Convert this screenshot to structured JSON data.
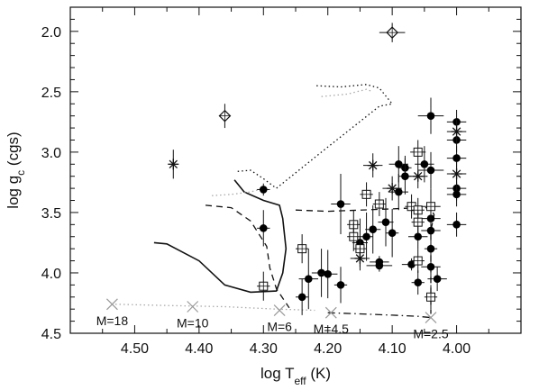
{
  "chart_data": {
    "type": "scatter",
    "title": "",
    "xlabel": "log T",
    "xlabel_sub": "eff",
    "xlabel_unit": " (K)",
    "ylabel": "log g",
    "ylabel_sub": "c",
    "ylabel_unit": " (cgs)",
    "xlim": [
      4.6,
      3.9
    ],
    "ylim": [
      4.5,
      1.8
    ],
    "x_reversed": true,
    "y_reversed": true,
    "xticks": [
      {
        "v": 4.5,
        "label": "4.50"
      },
      {
        "v": 4.4,
        "label": "4.40"
      },
      {
        "v": 4.3,
        "label": "4.30"
      },
      {
        "v": 4.2,
        "label": "4.20"
      },
      {
        "v": 4.1,
        "label": "4.10"
      },
      {
        "v": 4.0,
        "label": "4.00"
      }
    ],
    "yticks": [
      {
        "v": 2.0,
        "label": "2.0"
      },
      {
        "v": 2.5,
        "label": "2.5"
      },
      {
        "v": 3.0,
        "label": "3.0"
      },
      {
        "v": 3.5,
        "label": "3.5"
      },
      {
        "v": 4.0,
        "label": "4.0"
      },
      {
        "v": 4.5,
        "label": "4.5"
      }
    ],
    "grid": false,
    "filled_circles": [
      {
        "x": 4.3,
        "y": 3.31,
        "ex": 0.01,
        "ey": 0.05
      },
      {
        "x": 4.3,
        "y": 3.63,
        "ex": 0.01,
        "ey": 0.15
      },
      {
        "x": 4.24,
        "y": 4.2,
        "ex": 0.01,
        "ey": 0.15
      },
      {
        "x": 4.23,
        "y": 4.05,
        "ex": 0.015,
        "ey": 0.25
      },
      {
        "x": 4.21,
        "y": 4.0,
        "ex": 0.015,
        "ey": 0.2
      },
      {
        "x": 4.2,
        "y": 4.01,
        "ex": 0.015,
        "ey": 0.2
      },
      {
        "x": 4.18,
        "y": 4.1,
        "ex": 0.01,
        "ey": 0.15
      },
      {
        "x": 4.18,
        "y": 3.43,
        "ex": 0.015,
        "ey": 0.25
      },
      {
        "x": 4.15,
        "y": 3.75,
        "ex": 0.012,
        "ey": 0.2
      },
      {
        "x": 4.14,
        "y": 3.7,
        "ex": 0.01,
        "ey": 0.2
      },
      {
        "x": 4.13,
        "y": 3.64,
        "ex": 0.012,
        "ey": 0.2
      },
      {
        "x": 4.12,
        "y": 3.94,
        "ex": 0.02,
        "ey": 0.05
      },
      {
        "x": 4.12,
        "y": 3.91,
        "ex": 0.015,
        "ey": 0.05
      },
      {
        "x": 4.11,
        "y": 3.58,
        "ex": 0.012,
        "ey": 0.2
      },
      {
        "x": 4.1,
        "y": 3.67,
        "ex": 0.01,
        "ey": 0.2
      },
      {
        "x": 4.09,
        "y": 3.1,
        "ex": 0.015,
        "ey": 0.15
      },
      {
        "x": 4.09,
        "y": 3.33,
        "ex": 0.015,
        "ey": 0.15
      },
      {
        "x": 4.08,
        "y": 3.13,
        "ex": 0.01,
        "ey": 0.1
      },
      {
        "x": 4.08,
        "y": 3.2,
        "ex": 0.01,
        "ey": 0.15
      },
      {
        "x": 4.07,
        "y": 3.93,
        "ex": 0.015,
        "ey": 0.05
      },
      {
        "x": 4.06,
        "y": 3.7,
        "ex": 0.015,
        "ey": 0.1
      },
      {
        "x": 4.06,
        "y": 4.08,
        "ex": 0.01,
        "ey": 0.1
      },
      {
        "x": 4.05,
        "y": 3.1,
        "ex": 0.015,
        "ey": 0.15
      },
      {
        "x": 4.04,
        "y": 2.7,
        "ex": 0.02,
        "ey": 0.15
      },
      {
        "x": 4.04,
        "y": 3.15,
        "ex": 0.02,
        "ey": 0.15
      },
      {
        "x": 4.04,
        "y": 3.55,
        "ex": 0.015,
        "ey": 0.15
      },
      {
        "x": 4.04,
        "y": 3.65,
        "ex": 0.015,
        "ey": 0.15
      },
      {
        "x": 4.04,
        "y": 3.8,
        "ex": 0.01,
        "ey": 0.1
      },
      {
        "x": 4.04,
        "y": 3.95,
        "ex": 0.015,
        "ey": 0.1
      },
      {
        "x": 4.03,
        "y": 4.05,
        "ex": 0.015,
        "ey": 0.1
      },
      {
        "x": 4.0,
        "y": 2.75,
        "ex": 0.015,
        "ey": 0.1
      },
      {
        "x": 4.0,
        "y": 2.9,
        "ex": 0.015,
        "ey": 0.1
      },
      {
        "x": 4.0,
        "y": 3.05,
        "ex": 0.015,
        "ey": 0.1
      },
      {
        "x": 4.0,
        "y": 3.3,
        "ex": 0.015,
        "ey": 0.1
      },
      {
        "x": 4.0,
        "y": 3.35,
        "ex": 0.015,
        "ey": 0.1
      },
      {
        "x": 4.0,
        "y": 3.6,
        "ex": 0.015,
        "ey": 0.1
      }
    ],
    "open_squares": [
      {
        "x": 4.3,
        "y": 4.11,
        "ex": 0.01,
        "ey": 0.12
      },
      {
        "x": 4.24,
        "y": 3.8,
        "ex": 0.01,
        "ey": 0.12
      },
      {
        "x": 4.16,
        "y": 3.6,
        "ex": 0.01,
        "ey": 0.12
      },
      {
        "x": 4.16,
        "y": 3.7,
        "ex": 0.01,
        "ey": 0.12
      },
      {
        "x": 4.15,
        "y": 3.8,
        "ex": 0.01,
        "ey": 0.1
      },
      {
        "x": 4.14,
        "y": 3.35,
        "ex": 0.01,
        "ey": 0.1
      },
      {
        "x": 4.12,
        "y": 3.43,
        "ex": 0.01,
        "ey": 0.1
      },
      {
        "x": 4.07,
        "y": 3.45,
        "ex": 0.01,
        "ey": 0.1
      },
      {
        "x": 4.06,
        "y": 3.0,
        "ex": 0.012,
        "ey": 0.1
      },
      {
        "x": 4.06,
        "y": 3.48,
        "ex": 0.01,
        "ey": 0.1
      },
      {
        "x": 4.06,
        "y": 3.58,
        "ex": 0.01,
        "ey": 0.1
      },
      {
        "x": 4.06,
        "y": 3.9,
        "ex": 0.01,
        "ey": 0.1
      },
      {
        "x": 4.04,
        "y": 3.45,
        "ex": 0.015,
        "ey": 0.15
      },
      {
        "x": 4.04,
        "y": 4.2,
        "ex": 0.01,
        "ey": 0.1
      }
    ],
    "stars": [
      {
        "x": 4.44,
        "y": 3.1,
        "ex": 0.0,
        "ey": 0.12
      },
      {
        "x": 4.13,
        "y": 3.11,
        "ex": 0.015,
        "ey": 0.1
      },
      {
        "x": 4.15,
        "y": 3.88,
        "ex": 0.015,
        "ey": 0.1
      },
      {
        "x": 4.1,
        "y": 3.3,
        "ex": 0.015,
        "ey": 0.1
      },
      {
        "x": 4.06,
        "y": 3.2,
        "ex": 0.015,
        "ey": 0.1
      },
      {
        "x": 4.0,
        "y": 2.83,
        "ex": 0.015,
        "ey": 0.1
      },
      {
        "x": 4.0,
        "y": 3.18,
        "ex": 0.015,
        "ey": 0.1
      }
    ],
    "diamonds": [
      {
        "x": 4.1,
        "y": 2.01,
        "ex": 0.02,
        "ey": 0.08
      },
      {
        "x": 4.36,
        "y": 2.7,
        "ex": 0.0,
        "ey": 0.1
      }
    ],
    "zams": {
      "points": [
        [
          4.53,
          4.26
        ],
        [
          4.41,
          4.28
        ],
        [
          4.28,
          4.31
        ],
        [
          4.2,
          4.33
        ],
        [
          4.04,
          4.37
        ]
      ],
      "marks": [
        {
          "x": 4.535,
          "y": 4.26,
          "label": "M=18"
        },
        {
          "x": 4.41,
          "y": 4.28,
          "label": "M=10"
        },
        {
          "x": 4.275,
          "y": 4.31,
          "label": "M=6"
        },
        {
          "x": 4.195,
          "y": 4.33,
          "label": "M=4.5"
        },
        {
          "x": 4.04,
          "y": 4.37,
          "label": "M=2.5"
        }
      ]
    },
    "tracks": [
      {
        "style": "solid",
        "points": [
          [
            4.47,
            3.75
          ],
          [
            4.45,
            3.76
          ],
          [
            4.4,
            3.9
          ],
          [
            4.36,
            4.1
          ],
          [
            4.32,
            4.16
          ],
          [
            4.28,
            4.15
          ],
          [
            4.27,
            4.0
          ],
          [
            4.265,
            3.8
          ],
          [
            4.27,
            3.55
          ],
          [
            4.275,
            3.44
          ],
          [
            4.3,
            3.4
          ],
          [
            4.33,
            3.33
          ],
          [
            4.345,
            3.23
          ]
        ]
      },
      {
        "style": "dashed",
        "points": [
          [
            4.39,
            3.44
          ],
          [
            4.35,
            3.46
          ],
          [
            4.32,
            3.57
          ],
          [
            4.295,
            3.78
          ],
          [
            4.29,
            3.96
          ],
          [
            4.28,
            4.13
          ],
          [
            4.26,
            4.29
          ]
        ]
      },
      {
        "style": "dashed",
        "points": [
          [
            4.25,
            3.48
          ],
          [
            4.2,
            3.49
          ],
          [
            4.1,
            3.47
          ],
          [
            4.06,
            3.46
          ],
          [
            4.04,
            3.46
          ],
          [
            4.035,
            3.52
          ],
          [
            4.04,
            3.65
          ],
          [
            4.04,
            3.9
          ],
          [
            4.04,
            4.2
          ],
          [
            4.04,
            4.34
          ]
        ]
      },
      {
        "style": "dotted",
        "points": [
          [
            4.34,
            3.16
          ],
          [
            4.32,
            3.15
          ],
          [
            4.3,
            3.22
          ],
          [
            4.28,
            3.3
          ],
          [
            4.21,
            3.0
          ],
          [
            4.12,
            2.62
          ],
          [
            4.1,
            2.6
          ],
          [
            4.12,
            2.47
          ],
          [
            4.14,
            2.44
          ],
          [
            4.18,
            2.46
          ],
          [
            4.22,
            2.45
          ]
        ]
      },
      {
        "style": "dotted",
        "color": "#aaaaaa",
        "points": [
          [
            4.38,
            3.36
          ],
          [
            4.35,
            3.35
          ],
          [
            4.32,
            3.33
          ],
          [
            4.3,
            3.3
          ]
        ]
      },
      {
        "style": "dotted",
        "color": "#aaaaaa",
        "points": [
          [
            4.21,
            2.54
          ],
          [
            4.17,
            2.52
          ],
          [
            4.14,
            2.48
          ],
          [
            4.13,
            2.5
          ]
        ]
      },
      {
        "style": "dotted",
        "color": "#aaaaaa",
        "points": [
          [
            4.53,
            4.26
          ],
          [
            4.45,
            4.27
          ],
          [
            4.36,
            4.28
          ],
          [
            4.28,
            4.3
          ],
          [
            4.22,
            4.31
          ]
        ]
      },
      {
        "style": "dashdot",
        "points": [
          [
            4.2,
            4.33
          ],
          [
            4.15,
            4.34
          ],
          [
            4.1,
            4.35
          ],
          [
            4.06,
            4.36
          ],
          [
            4.04,
            4.37
          ]
        ]
      }
    ]
  }
}
